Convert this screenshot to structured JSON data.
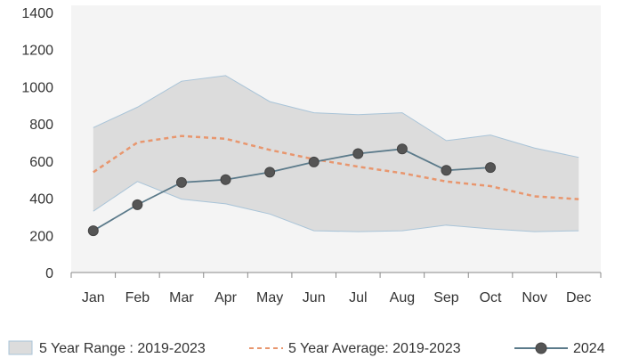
{
  "chart_data": {
    "type": "line",
    "categories": [
      "Jan",
      "Feb",
      "Mar",
      "Apr",
      "May",
      "Jun",
      "Jul",
      "Aug",
      "Sep",
      "Oct",
      "Nov",
      "Dec"
    ],
    "ylim": [
      0,
      1400
    ],
    "yticks": [
      0,
      200,
      400,
      600,
      800,
      1000,
      1200,
      1400
    ],
    "grid": false,
    "legend_position": "bottom",
    "range": {
      "name": "5 Year Range : 2019-2023",
      "upper": [
        780,
        890,
        1030,
        1060,
        920,
        860,
        850,
        860,
        710,
        740,
        670,
        620
      ],
      "lower": [
        330,
        490,
        395,
        370,
        315,
        225,
        220,
        225,
        255,
        235,
        220,
        225
      ],
      "color": "#dcdcdc",
      "border_color": "#a9c4d8"
    },
    "series": [
      {
        "name": "5 Year Average: 2019-2023",
        "style": "dashed",
        "color": "#e8966e",
        "values": [
          540,
          700,
          735,
          720,
          660,
          610,
          570,
          535,
          490,
          465,
          410,
          395
        ]
      },
      {
        "name": "2024",
        "style": "solid-markers",
        "color": "#5b7a8a",
        "marker_color": "#555555",
        "values": [
          225,
          365,
          485,
          500,
          540,
          595,
          640,
          665,
          550,
          565,
          null,
          null
        ]
      }
    ]
  }
}
